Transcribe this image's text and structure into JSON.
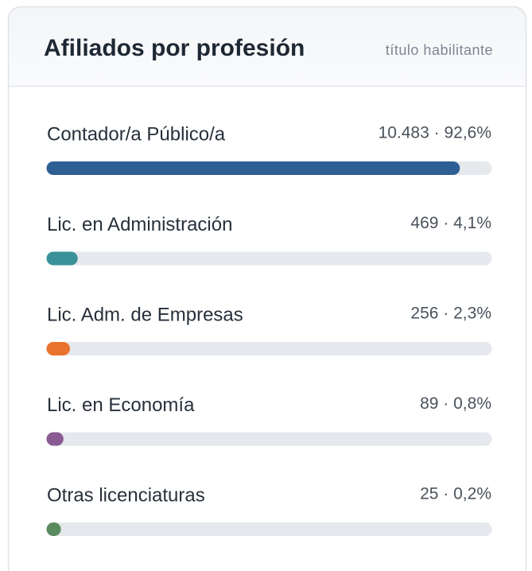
{
  "chart_data": {
    "type": "bar",
    "orientation": "horizontal",
    "title": "Afiliados por profesión",
    "subtitle": "título habilitante",
    "categories": [
      "Contador/a Público/a",
      "Lic. en Administración",
      "Lic. Adm. de Empresas",
      "Lic. en Economía",
      "Otras licenciaturas"
    ],
    "values": [
      92.6,
      4.1,
      2.3,
      0.8,
      0.2
    ],
    "value_labels": [
      "10.483 · 92,6%",
      "469 · 4,1%",
      "256 · 2,3%",
      "89 · 0,8%",
      "25 · 0,2%"
    ],
    "colors": [
      "#2e5f94",
      "#3a9199",
      "#e8732c",
      "#8a5a92",
      "#5b8a5e"
    ],
    "xlim": [
      0,
      100
    ]
  }
}
